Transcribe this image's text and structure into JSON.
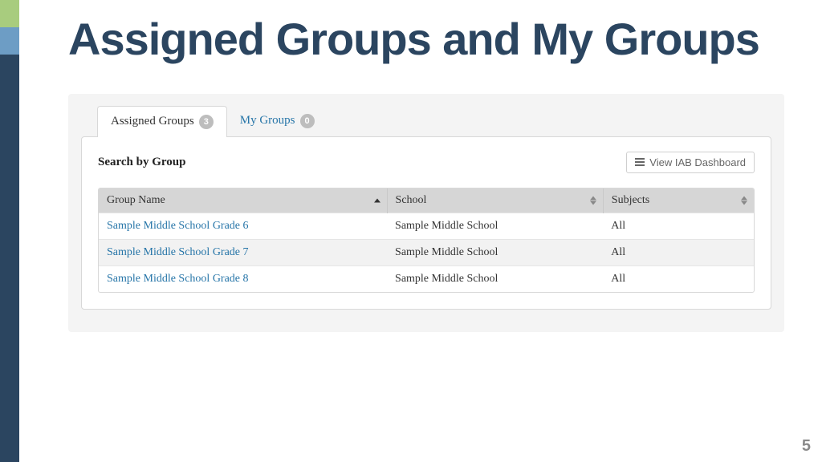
{
  "page": {
    "title": "Assigned Groups and My Groups",
    "number": "5"
  },
  "tabs": {
    "assigned": {
      "label": "Assigned Groups",
      "count": "3"
    },
    "mygroups": {
      "label": "My Groups",
      "count": "0"
    }
  },
  "card": {
    "search_label": "Search by Group",
    "view_button": "View IAB Dashboard"
  },
  "table": {
    "columns": {
      "group": "Group Name",
      "school": "School",
      "subjects": "Subjects"
    },
    "rows": [
      {
        "group": "Sample Middle School Grade 6",
        "school": "Sample Middle School",
        "subjects": "All"
      },
      {
        "group": "Sample Middle School Grade 7",
        "school": "Sample Middle School",
        "subjects": "All"
      },
      {
        "group": "Sample Middle School Grade 8",
        "school": "Sample Middle School",
        "subjects": "All"
      }
    ]
  }
}
